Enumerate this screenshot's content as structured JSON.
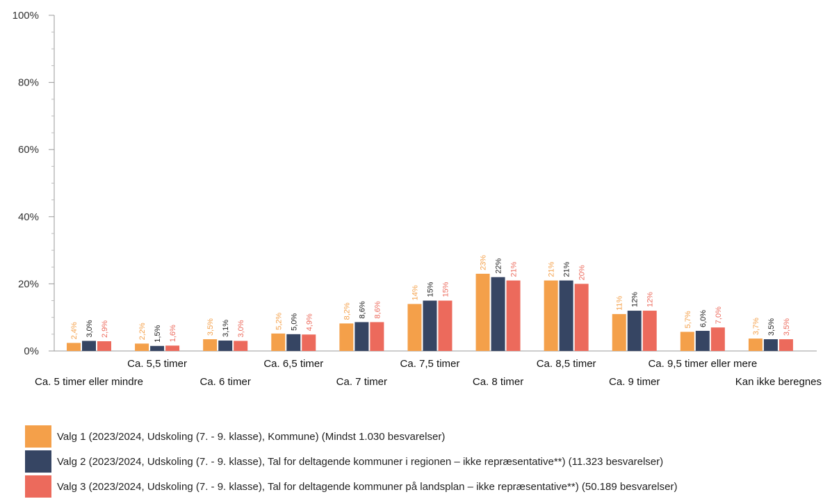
{
  "chart_data": {
    "type": "bar",
    "categories": [
      "Ca. 5 timer eller mindre",
      "Ca. 5,5 timer",
      "Ca. 6 timer",
      "Ca. 6,5 timer",
      "Ca. 7 timer",
      "Ca. 7,5 timer",
      "Ca. 8 timer",
      "Ca. 8,5 timer",
      "Ca. 9 timer",
      "Ca. 9,5 timer eller mere",
      "Kan ikke beregnes"
    ],
    "series": [
      {
        "name": "Valg 1 (2023/2024, Udskoling (7. - 9. klasse), Kommune) (Mindst 1.030 besvarelser)",
        "color": "#F4A04A",
        "values": [
          2.4,
          2.2,
          3.5,
          5.2,
          8.2,
          14,
          23,
          21,
          11,
          5.7,
          3.7
        ],
        "labels": [
          "2,4%",
          "2,2%",
          "3,5%",
          "5,2%",
          "8,2%",
          "14%",
          "23%",
          "21%",
          "11%",
          "5,7%",
          "3,7%"
        ]
      },
      {
        "name": "Valg 2 (2023/2024, Udskoling (7. - 9. klasse), Tal for deltagende kommuner i regionen – ikke repræsentative**) (11.323 besvarelser)",
        "color": "#364563",
        "values": [
          3.0,
          1.5,
          3.1,
          5.0,
          8.6,
          15,
          22,
          21,
          12,
          6.0,
          3.5
        ],
        "labels": [
          "3,0%",
          "1,5%",
          "3,1%",
          "5,0%",
          "8,6%",
          "15%",
          "22%",
          "21%",
          "12%",
          "6,0%",
          "3,5%"
        ]
      },
      {
        "name": "Valg 3 (2023/2024, Udskoling (7. - 9. klasse), Tal for deltagende kommuner på landsplan – ikke repræsentative**) (50.189 besvarelser)",
        "color": "#EC6A5C",
        "values": [
          2.9,
          1.6,
          3.0,
          4.9,
          8.6,
          15,
          21,
          20,
          12,
          7.0,
          3.5
        ],
        "labels": [
          "2,9%",
          "1,6%",
          "3,0%",
          "4,9%",
          "8,6%",
          "15%",
          "21%",
          "20%",
          "12%",
          "7,0%",
          "3,5%"
        ]
      }
    ],
    "ylim": [
      0,
      100
    ],
    "yticks": [
      "0%",
      "20%",
      "40%",
      "60%",
      "80%",
      "100%"
    ],
    "grid": false,
    "legend_position": "bottom"
  }
}
